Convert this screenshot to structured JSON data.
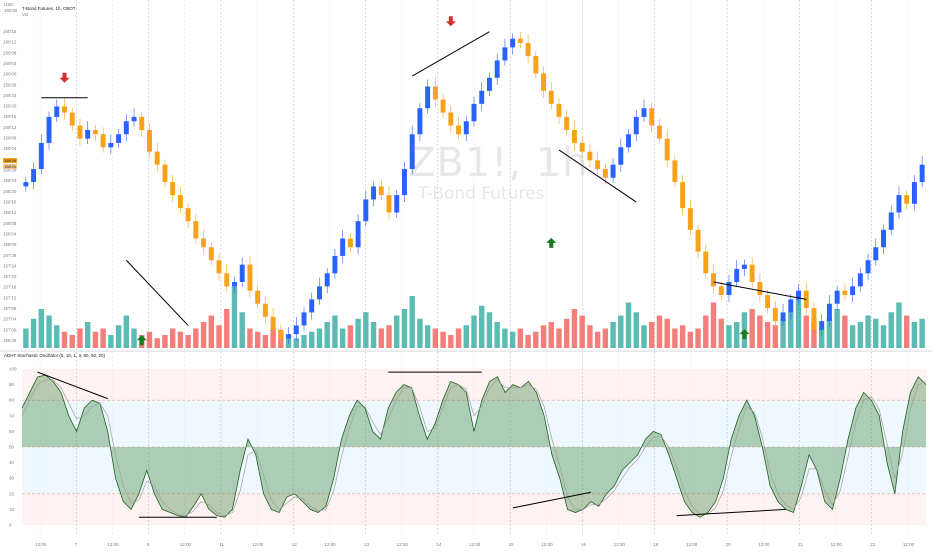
{
  "header": {
    "scale_label": "USD",
    "title": "T-Bond Futures, 1h, CBOT",
    "subtitle": "Vol",
    "top_value": "160'30"
  },
  "watermark": {
    "symbol": "ZB1!, 1h",
    "name": "T-Bond Futures"
  },
  "oscillator_header": "ADHT Stochastic Oscillator (5, 10, 1, 3, 80, 50, 20)",
  "colors": {
    "up": "#2962ff",
    "down": "#f7a21b",
    "vol_up": "#26a69a",
    "vol_down": "#ef5350",
    "stoch": "#2e7d32",
    "arrow_up": "#1b7a1b",
    "arrow_down": "#d32f2f"
  },
  "price_tags": [
    "158'28",
    "158'24"
  ],
  "chart_data": [
    {
      "type": "candlestick",
      "y_axis_ticks": [
        "160'16",
        "160'12",
        "160'08",
        "160'04",
        "160'00",
        "159'28",
        "159'24",
        "159'20",
        "159'16",
        "159'12",
        "159'08",
        "159'04",
        "159'00",
        "158'28",
        "158'24",
        "158'20",
        "158'16",
        "158'12",
        "158'08",
        "158'04",
        "158'00",
        "157'28",
        "157'24",
        "157'20",
        "157'16",
        "157'12",
        "157'08",
        "157'04",
        "157'00",
        "156'28"
      ],
      "x_axis_ticks": [
        "12:00",
        "7",
        "12:00",
        "8",
        "12:00",
        "11",
        "12:00",
        "12",
        "12:00",
        "13",
        "12:00",
        "14",
        "12:00",
        "15",
        "12:00",
        "16",
        "12:00",
        "19",
        "12:00",
        "20",
        "12:00",
        "21",
        "12:00",
        "22",
        "12:00"
      ],
      "ylim": [
        156.875,
        160.5
      ],
      "close_series": [
        158.75,
        158.9,
        159.2,
        159.5,
        159.62,
        159.55,
        159.4,
        159.25,
        159.35,
        159.3,
        159.15,
        159.2,
        159.3,
        159.45,
        159.5,
        159.35,
        159.1,
        158.95,
        158.75,
        158.6,
        158.45,
        158.3,
        158.1,
        158.0,
        157.85,
        157.7,
        157.55,
        157.6,
        157.8,
        157.5,
        157.35,
        157.2,
        157.05,
        156.95,
        157.0,
        157.1,
        157.25,
        157.4,
        157.55,
        157.7,
        157.9,
        158.1,
        158.0,
        158.3,
        158.55,
        158.7,
        158.6,
        158.4,
        158.6,
        158.9,
        159.3,
        159.6,
        159.85,
        159.7,
        159.55,
        159.4,
        159.3,
        159.45,
        159.65,
        159.8,
        159.95,
        160.15,
        160.3,
        160.4,
        160.35,
        160.2,
        160.0,
        159.8,
        159.65,
        159.5,
        159.35,
        159.2,
        159.1,
        159.0,
        158.9,
        158.8,
        158.95,
        159.15,
        159.3,
        159.5,
        159.6,
        159.4,
        159.25,
        159.0,
        158.75,
        158.45,
        158.2,
        157.95,
        157.7,
        157.55,
        157.45,
        157.6,
        157.75,
        157.8,
        157.6,
        157.45,
        157.3,
        157.15,
        157.25,
        157.4,
        157.5,
        157.3,
        157.05,
        157.15,
        157.35,
        157.5,
        157.45,
        157.55,
        157.7,
        157.85,
        158.0,
        158.2,
        158.4,
        158.6,
        158.5,
        158.75,
        158.95
      ],
      "volume_series": [
        0.3,
        0.45,
        0.6,
        0.5,
        0.35,
        0.25,
        0.2,
        0.3,
        0.4,
        0.25,
        0.3,
        0.2,
        0.35,
        0.5,
        0.3,
        0.2,
        0.25,
        0.15,
        0.2,
        0.3,
        0.25,
        0.2,
        0.3,
        0.4,
        0.5,
        0.35,
        0.6,
        0.95,
        0.55,
        0.3,
        0.25,
        0.2,
        0.3,
        0.25,
        0.2,
        0.15,
        0.2,
        0.25,
        0.3,
        0.4,
        0.5,
        0.3,
        0.35,
        0.45,
        0.55,
        0.4,
        0.3,
        0.35,
        0.5,
        0.6,
        0.8,
        0.45,
        0.35,
        0.3,
        0.25,
        0.2,
        0.3,
        0.35,
        0.5,
        0.65,
        0.55,
        0.4,
        0.3,
        0.25,
        0.3,
        0.2,
        0.25,
        0.35,
        0.4,
        0.3,
        0.45,
        0.6,
        0.5,
        0.35,
        0.25,
        0.3,
        0.4,
        0.5,
        0.7,
        0.55,
        0.35,
        0.4,
        0.5,
        0.45,
        0.3,
        0.35,
        0.25,
        0.3,
        0.5,
        0.7,
        0.45,
        0.35,
        0.4,
        0.55,
        0.6,
        0.5,
        0.4,
        0.35,
        0.45,
        0.55,
        0.75,
        0.5,
        0.4,
        0.3,
        0.45,
        0.6,
        0.5,
        0.35,
        0.4,
        0.5,
        0.45,
        0.35,
        0.55,
        0.7,
        0.5,
        0.4,
        0.45
      ],
      "annotations": [
        {
          "type": "arrow-down",
          "near": "159'24 high, day 7"
        },
        {
          "type": "arrow-up",
          "near": "157'00 low, day 11"
        },
        {
          "type": "arrow-down",
          "near": "160'16 high, day 14"
        },
        {
          "type": "arrow-up",
          "near": "158'16, day 15"
        },
        {
          "type": "arrow-up",
          "near": "157'08 low, day 20"
        }
      ]
    },
    {
      "type": "line",
      "ylim": [
        0,
        100
      ],
      "y_axis_ticks": [
        "100",
        "90",
        "80",
        "70",
        "60",
        "50",
        "40",
        "30",
        "20",
        "10",
        "0"
      ],
      "levels": [
        80,
        50,
        20
      ],
      "k_series": [
        75,
        85,
        95,
        96,
        92,
        85,
        70,
        60,
        75,
        80,
        78,
        60,
        30,
        15,
        10,
        20,
        35,
        20,
        10,
        8,
        6,
        5,
        12,
        20,
        10,
        6,
        5,
        10,
        35,
        55,
        45,
        20,
        10,
        8,
        18,
        20,
        15,
        10,
        8,
        12,
        30,
        55,
        70,
        80,
        75,
        60,
        55,
        75,
        85,
        90,
        88,
        70,
        55,
        65,
        80,
        92,
        90,
        85,
        60,
        80,
        92,
        95,
        85,
        90,
        88,
        92,
        85,
        70,
        45,
        30,
        10,
        8,
        10,
        15,
        12,
        20,
        25,
        35,
        40,
        45,
        55,
        60,
        58,
        45,
        30,
        15,
        8,
        5,
        8,
        15,
        30,
        55,
        70,
        80,
        70,
        50,
        25,
        15,
        10,
        8,
        25,
        45,
        35,
        15,
        10,
        30,
        55,
        75,
        85,
        80,
        70,
        40,
        20,
        60,
        85,
        95,
        90
      ],
      "d_series": [
        70,
        80,
        90,
        93,
        93,
        88,
        78,
        68,
        70,
        76,
        78,
        70,
        45,
        25,
        14,
        16,
        28,
        25,
        15,
        10,
        7,
        6,
        9,
        15,
        13,
        8,
        6,
        8,
        22,
        45,
        48,
        32,
        16,
        10,
        14,
        18,
        17,
        12,
        9,
        10,
        22,
        44,
        62,
        76,
        76,
        66,
        58,
        68,
        80,
        88,
        88,
        76,
        60,
        62,
        75,
        88,
        90,
        87,
        70,
        76,
        88,
        93,
        88,
        88,
        88,
        90,
        87,
        76,
        55,
        38,
        18,
        10,
        10,
        13,
        13,
        17,
        22,
        30,
        37,
        42,
        50,
        56,
        57,
        50,
        37,
        22,
        12,
        7,
        7,
        11,
        22,
        44,
        62,
        76,
        72,
        56,
        34,
        20,
        13,
        10,
        18,
        36,
        36,
        22,
        13,
        22,
        44,
        66,
        80,
        82,
        74,
        52,
        30,
        46,
        74,
        90,
        92
      ]
    }
  ]
}
